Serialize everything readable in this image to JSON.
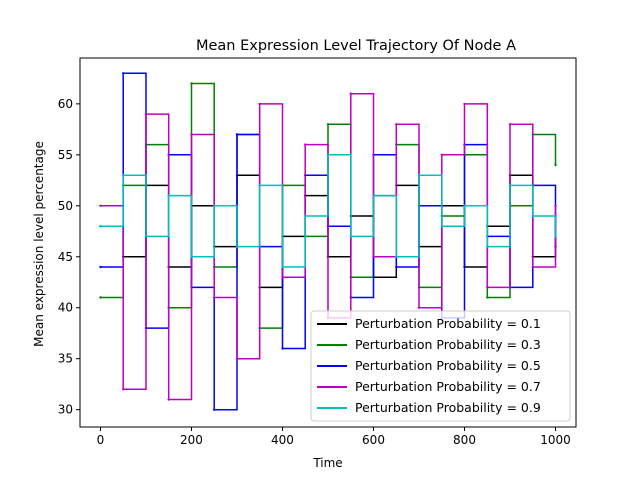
{
  "chart_data": {
    "type": "line",
    "title": "Mean Expression Level Trajectory Of Node A",
    "xlabel": "Time",
    "ylabel": "Mean expression level percentage",
    "xlim": [
      -45,
      1045
    ],
    "ylim": [
      28.3,
      64.5
    ],
    "xticks": [
      0,
      200,
      400,
      600,
      800,
      1000
    ],
    "yticks": [
      30,
      35,
      40,
      45,
      50,
      55,
      60
    ],
    "grid": false,
    "legend_position": "lower-right",
    "series": [
      {
        "name": "Perturbation Probability = 0.1",
        "color": "#000000",
        "x": [
          0,
          50,
          100,
          150,
          200,
          250,
          300,
          350,
          400,
          450,
          500,
          550,
          600,
          650,
          700,
          750,
          800,
          850,
          900,
          950,
          1000
        ],
        "values": [
          48,
          45,
          52,
          44,
          50,
          46,
          53,
          42,
          47,
          51,
          45,
          49,
          43,
          52,
          46,
          50,
          44,
          48,
          53,
          45,
          49
        ]
      },
      {
        "name": "Perturbation Probability = 0.3",
        "color": "#008000",
        "x": [
          0,
          50,
          100,
          150,
          200,
          250,
          300,
          350,
          400,
          450,
          500,
          550,
          600,
          650,
          700,
          750,
          800,
          850,
          900,
          950,
          1000
        ],
        "values": [
          41,
          52,
          56,
          40,
          62,
          44,
          57,
          38,
          52,
          47,
          58,
          43,
          51,
          56,
          42,
          49,
          55,
          41,
          50,
          57,
          54
        ]
      },
      {
        "name": "Perturbation Probability = 0.5",
        "color": "#0000ff",
        "x": [
          0,
          50,
          100,
          150,
          200,
          250,
          300,
          350,
          400,
          450,
          500,
          550,
          600,
          650,
          700,
          750,
          800,
          850,
          900,
          950,
          1000
        ],
        "values": [
          44,
          63,
          38,
          55,
          42,
          30,
          57,
          46,
          36,
          53,
          48,
          41,
          55,
          44,
          50,
          39,
          56,
          47,
          42,
          52,
          46
        ]
      },
      {
        "name": "Perturbation Probability = 0.7",
        "color": "#c000c0",
        "x": [
          0,
          50,
          100,
          150,
          200,
          250,
          300,
          350,
          400,
          450,
          500,
          550,
          600,
          650,
          700,
          750,
          800,
          850,
          900,
          950,
          1000
        ],
        "values": [
          50,
          32,
          59,
          31,
          57,
          41,
          35,
          60,
          43,
          56,
          39,
          61,
          45,
          58,
          40,
          55,
          60,
          42,
          58,
          44,
          50
        ]
      },
      {
        "name": "Perturbation Probability = 0.9",
        "color": "#00bfbf",
        "x": [
          0,
          50,
          100,
          150,
          200,
          250,
          300,
          350,
          400,
          450,
          500,
          550,
          600,
          650,
          700,
          750,
          800,
          850,
          900,
          950,
          1000
        ],
        "values": [
          48,
          53,
          47,
          51,
          45,
          50,
          46,
          52,
          44,
          49,
          55,
          47,
          51,
          45,
          53,
          48,
          50,
          46,
          52,
          49,
          47
        ]
      }
    ]
  }
}
